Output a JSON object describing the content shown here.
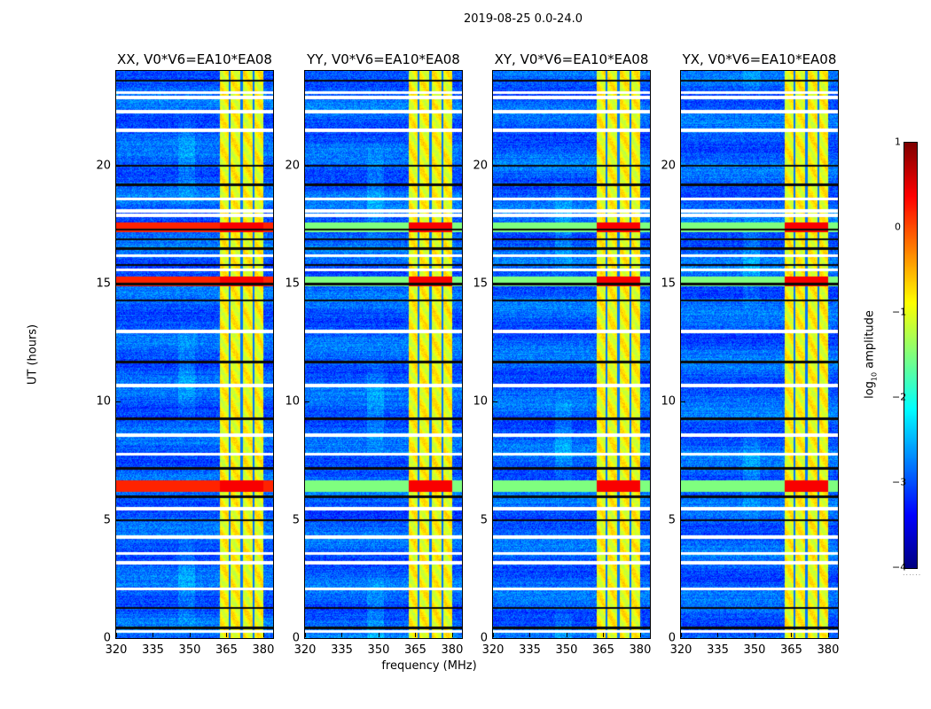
{
  "chart_data": {
    "type": "heatmap",
    "title": "2019-08-25 0.0-24.0",
    "xlabel": "frequency (MHz)",
    "ylabel": "UT (hours)",
    "xlim": [
      320,
      384
    ],
    "ylim": [
      0,
      24
    ],
    "xticks": [
      "320",
      "335",
      "350",
      "365",
      "380"
    ],
    "yticks": [
      "0",
      "5",
      "10",
      "15",
      "20"
    ],
    "panels": [
      {
        "title": "XX, V0*V6=EA10*EA08"
      },
      {
        "title": "YY, V0*V6=EA10*EA08"
      },
      {
        "title": "XY, V0*V6=EA10*EA08"
      },
      {
        "title": "YX, V0*V6=EA10*EA08"
      }
    ],
    "colorbar": {
      "label_prefix": "log",
      "label_sub": "10",
      "label_suffix": " amplitude",
      "range": [
        -4,
        1
      ],
      "ticks": [
        "1",
        "0",
        "−1",
        "−2",
        "−3",
        "−4"
      ],
      "colormap": "jet",
      "extra_text": "......"
    },
    "background_log_amplitude": -2.9,
    "rfi_band_mhz": [
      362,
      380
    ],
    "rfi_band_log_amplitude": -0.9,
    "rfi_subband_gaps_mhz": [
      366,
      371,
      376
    ],
    "flagged_hours": [
      0.3,
      2.1,
      3.2,
      3.6,
      4.3,
      5.5,
      7.8,
      8.6,
      10.7,
      13.0,
      15.6,
      16.2,
      17.9,
      18.1,
      18.6,
      21.5,
      22.3,
      22.9,
      23.1
    ],
    "dark_row_hours": [
      0.45,
      1.3,
      5.0,
      6.0,
      7.2,
      9.3,
      11.7,
      14.3,
      15.0,
      15.8,
      16.5,
      16.9,
      17.3,
      19.2,
      20.0,
      23.6
    ],
    "strong_hours": [
      [
        6.2,
        6.7
      ],
      [
        14.9,
        15.3
      ],
      [
        17.2,
        17.6
      ]
    ]
  }
}
